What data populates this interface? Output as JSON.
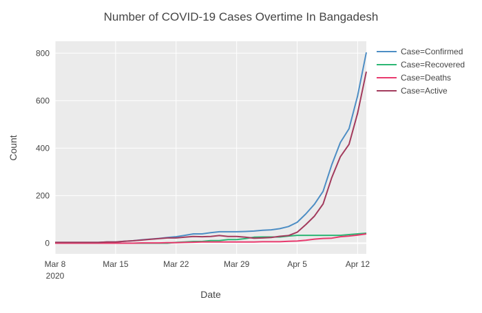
{
  "chart_data": {
    "type": "line",
    "title": "Number of COVID-19 Cases Overtime In Bangadesh",
    "xlabel": "Date",
    "ylabel": "Count",
    "x_start": "2020-03-08",
    "x_end": "2020-04-13",
    "xlim": [
      "2020-03-08",
      "2020-04-13"
    ],
    "ylim": [
      -45,
      850
    ],
    "x_ticks": [
      {
        "date": "2020-03-08",
        "label": "Mar 8",
        "sublabel": "2020"
      },
      {
        "date": "2020-03-15",
        "label": "Mar 15",
        "sublabel": ""
      },
      {
        "date": "2020-03-22",
        "label": "Mar 22",
        "sublabel": ""
      },
      {
        "date": "2020-03-29",
        "label": "Mar 29",
        "sublabel": ""
      },
      {
        "date": "2020-04-05",
        "label": "Apr 5",
        "sublabel": ""
      },
      {
        "date": "2020-04-12",
        "label": "Apr 12",
        "sublabel": ""
      }
    ],
    "y_ticks": [
      0,
      200,
      400,
      600,
      800
    ],
    "grid": true,
    "legend_position": "right",
    "dates": [
      "2020-03-08",
      "2020-03-09",
      "2020-03-10",
      "2020-03-11",
      "2020-03-12",
      "2020-03-13",
      "2020-03-14",
      "2020-03-15",
      "2020-03-16",
      "2020-03-17",
      "2020-03-18",
      "2020-03-19",
      "2020-03-20",
      "2020-03-21",
      "2020-03-22",
      "2020-03-23",
      "2020-03-24",
      "2020-03-25",
      "2020-03-26",
      "2020-03-27",
      "2020-03-28",
      "2020-03-29",
      "2020-03-30",
      "2020-03-31",
      "2020-04-01",
      "2020-04-02",
      "2020-04-03",
      "2020-04-04",
      "2020-04-05",
      "2020-04-06",
      "2020-04-07",
      "2020-04-08",
      "2020-04-09",
      "2020-04-10",
      "2020-04-11",
      "2020-04-12",
      "2020-04-13"
    ],
    "series": [
      {
        "name": "Case=Confirmed",
        "color": "#4c8dc4",
        "values": [
          3,
          3,
          3,
          3,
          3,
          3,
          5,
          5,
          8,
          10,
          14,
          17,
          20,
          24,
          27,
          33,
          39,
          39,
          44,
          48,
          48,
          48,
          49,
          51,
          54,
          56,
          61,
          70,
          88,
          123,
          164,
          218,
          330,
          424,
          482,
          621,
          803
        ]
      },
      {
        "name": "Case=Recovered",
        "color": "#2bb673",
        "values": [
          0,
          0,
          0,
          0,
          0,
          0,
          0,
          0,
          0,
          0,
          0,
          0,
          0,
          0,
          3,
          5,
          7,
          7,
          11,
          11,
          15,
          15,
          19,
          25,
          26,
          26,
          26,
          30,
          33,
          33,
          33,
          33,
          33,
          33,
          36,
          39,
          42
        ]
      },
      {
        "name": "Case=Deaths",
        "color": "#e8386d",
        "values": [
          0,
          0,
          0,
          0,
          0,
          0,
          0,
          0,
          0,
          0,
          1,
          1,
          1,
          2,
          2,
          3,
          4,
          5,
          5,
          5,
          5,
          5,
          5,
          5,
          6,
          6,
          6,
          8,
          9,
          12,
          17,
          20,
          21,
          27,
          30,
          34,
          39
        ]
      },
      {
        "name": "Case=Active",
        "color": "#a23a5c",
        "values": [
          3,
          3,
          3,
          3,
          3,
          3,
          5,
          5,
          8,
          10,
          13,
          16,
          19,
          22,
          22,
          25,
          28,
          27,
          28,
          32,
          28,
          28,
          25,
          21,
          22,
          24,
          29,
          32,
          46,
          78,
          114,
          165,
          276,
          364,
          416,
          548,
          722
        ]
      }
    ]
  }
}
